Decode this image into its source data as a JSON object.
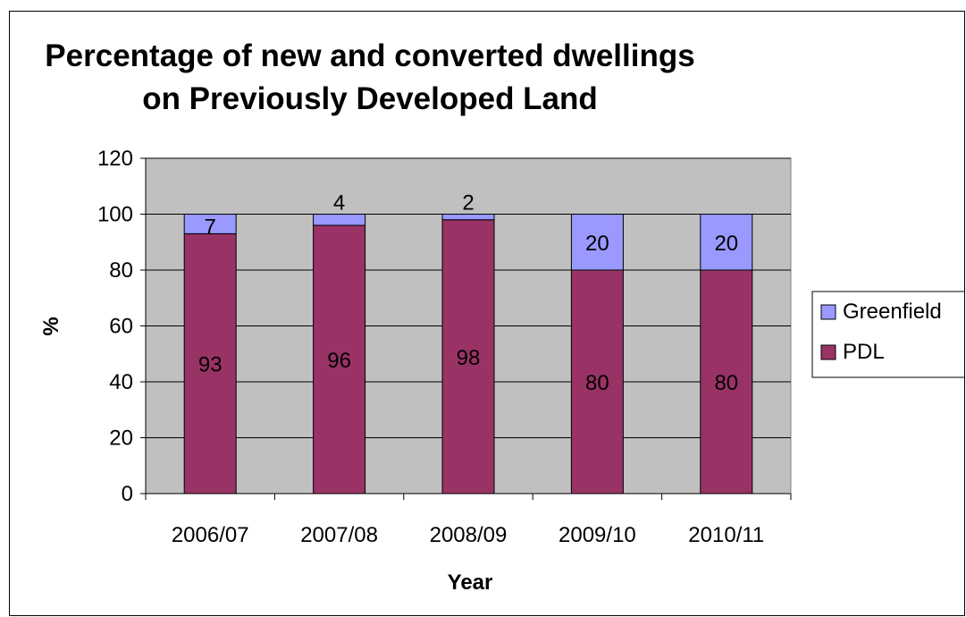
{
  "chart_data": {
    "type": "bar",
    "stacked": true,
    "title_lines": [
      "Percentage of new and converted dwellings",
      "on Previously Developed Land"
    ],
    "xlabel": "Year",
    "ylabel": "%",
    "categories": [
      "2006/07",
      "2007/08",
      "2008/09",
      "2009/10",
      "2010/11"
    ],
    "ylim": [
      0,
      120
    ],
    "yticks": [
      0,
      20,
      40,
      60,
      80,
      100,
      120
    ],
    "grid": true,
    "legend_position": "right",
    "series": [
      {
        "name": "PDL",
        "values": [
          93,
          96,
          98,
          80,
          80
        ],
        "color": "#993366"
      },
      {
        "name": "Greenfield",
        "values": [
          7,
          4,
          2,
          20,
          20
        ],
        "color": "#9999ff"
      }
    ],
    "plot_background": "#c0c0c0"
  }
}
